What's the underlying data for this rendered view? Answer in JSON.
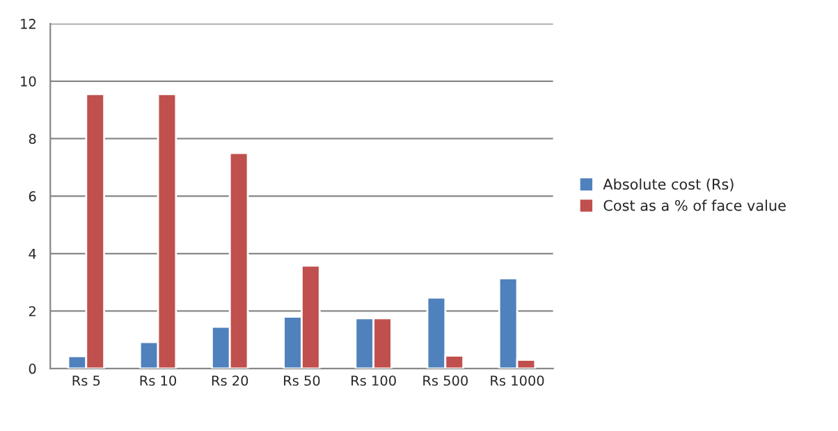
{
  "chart_data": {
    "type": "bar",
    "categories": [
      "Rs 5",
      "Rs 10",
      "Rs 20",
      "Rs 50",
      "Rs 100",
      "Rs 500",
      "Rs 1000"
    ],
    "series": [
      {
        "name": "Absolute cost (Rs)",
        "color": "#4f81bd",
        "values": [
          0.43,
          0.92,
          1.45,
          1.8,
          1.75,
          2.47,
          3.14
        ]
      },
      {
        "name": "Cost as a % of face value",
        "color": "#c0504d",
        "values": [
          9.55,
          9.55,
          7.5,
          3.58,
          1.75,
          0.45,
          0.3
        ]
      }
    ],
    "ylim": [
      0,
      12
    ],
    "yticks": [
      0,
      2,
      4,
      6,
      8,
      10,
      12
    ],
    "grid": "y",
    "legend": "right"
  }
}
